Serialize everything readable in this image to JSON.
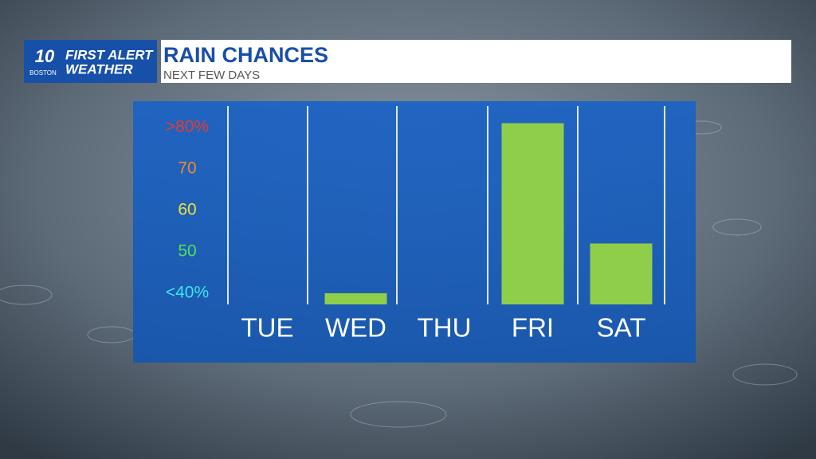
{
  "branding": {
    "channel": "10",
    "city": "BOSTON",
    "line1": "FIRST ALERT",
    "line2": "WEATHER"
  },
  "chart_data": {
    "type": "bar",
    "title": "RAIN CHANCES",
    "subtitle": "NEXT FEW DAYS",
    "categories": [
      "TUE",
      "WED",
      "THU",
      "FRI",
      "SAT"
    ],
    "values": [
      null,
      40,
      null,
      81,
      52
    ],
    "color": "#8fce4a",
    "ylim": [
      37.3,
      84
    ],
    "yticks": [
      {
        "value": 80,
        "label": ">80%"
      },
      70,
      60,
      50,
      {
        "value": 40,
        "label": "<40%"
      }
    ],
    "ytick_colors": [
      "#e8392f",
      "#f08a2a",
      "#e9e23a",
      "#4fe05a",
      "#3fe3f0"
    ],
    "grid": false
  }
}
